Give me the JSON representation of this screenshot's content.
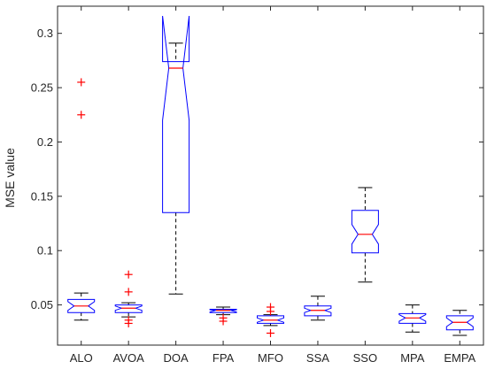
{
  "chart_data": {
    "type": "box",
    "title": "",
    "xlabel": "",
    "ylabel": "MSE value",
    "ylim": [
      0.013,
      0.325
    ],
    "yticks": [
      0.05,
      0.1,
      0.15,
      0.2,
      0.25,
      0.3
    ],
    "ytick_labels": [
      "0.05",
      "0.1",
      "0.15",
      "0.2",
      "0.25",
      "0.3"
    ],
    "grid": false,
    "colors": {
      "box": "#0000ff",
      "median": "#ff0000",
      "whisker": "#000000",
      "outlier": "#ff0000",
      "axis": "#262626"
    },
    "categories": [
      "ALO",
      "AVOA",
      "DOA",
      "FPA",
      "MFO",
      "SSA",
      "SSO",
      "MPA",
      "EMPA"
    ],
    "boxes": [
      {
        "q1": 0.043,
        "median": 0.049,
        "q3": 0.055,
        "notch_low": 0.045,
        "notch_high": 0.053,
        "whisker_low": 0.036,
        "whisker_high": 0.061,
        "outliers": [
          0.225,
          0.255
        ]
      },
      {
        "q1": 0.043,
        "median": 0.047,
        "q3": 0.05,
        "notch_low": 0.045,
        "notch_high": 0.049,
        "whisker_low": 0.039,
        "whisker_high": 0.052,
        "outliers": [
          0.033,
          0.036,
          0.062,
          0.078
        ]
      },
      {
        "q1": 0.135,
        "median": 0.268,
        "q3": 0.274,
        "notch_low": 0.22,
        "notch_high": 0.316,
        "whisker_low": 0.06,
        "whisker_high": 0.291,
        "outliers": []
      },
      {
        "q1": 0.043,
        "median": 0.045,
        "q3": 0.046,
        "notch_low": 0.0435,
        "notch_high": 0.0455,
        "whisker_low": 0.041,
        "whisker_high": 0.048,
        "outliers": [
          0.035,
          0.038
        ]
      },
      {
        "q1": 0.033,
        "median": 0.036,
        "q3": 0.04,
        "notch_low": 0.034,
        "notch_high": 0.038,
        "whisker_low": 0.031,
        "whisker_high": 0.041,
        "outliers": [
          0.024,
          0.044,
          0.048
        ]
      },
      {
        "q1": 0.04,
        "median": 0.045,
        "q3": 0.049,
        "notch_low": 0.043,
        "notch_high": 0.047,
        "whisker_low": 0.036,
        "whisker_high": 0.058,
        "outliers": []
      },
      {
        "q1": 0.098,
        "median": 0.115,
        "q3": 0.137,
        "notch_low": 0.106,
        "notch_high": 0.124,
        "whisker_low": 0.071,
        "whisker_high": 0.158,
        "outliers": []
      },
      {
        "q1": 0.033,
        "median": 0.038,
        "q3": 0.042,
        "notch_low": 0.035,
        "notch_high": 0.041,
        "whisker_low": 0.025,
        "whisker_high": 0.05,
        "outliers": []
      },
      {
        "q1": 0.027,
        "median": 0.034,
        "q3": 0.04,
        "notch_low": 0.03,
        "notch_high": 0.038,
        "whisker_low": 0.022,
        "whisker_high": 0.045,
        "outliers": []
      }
    ]
  }
}
